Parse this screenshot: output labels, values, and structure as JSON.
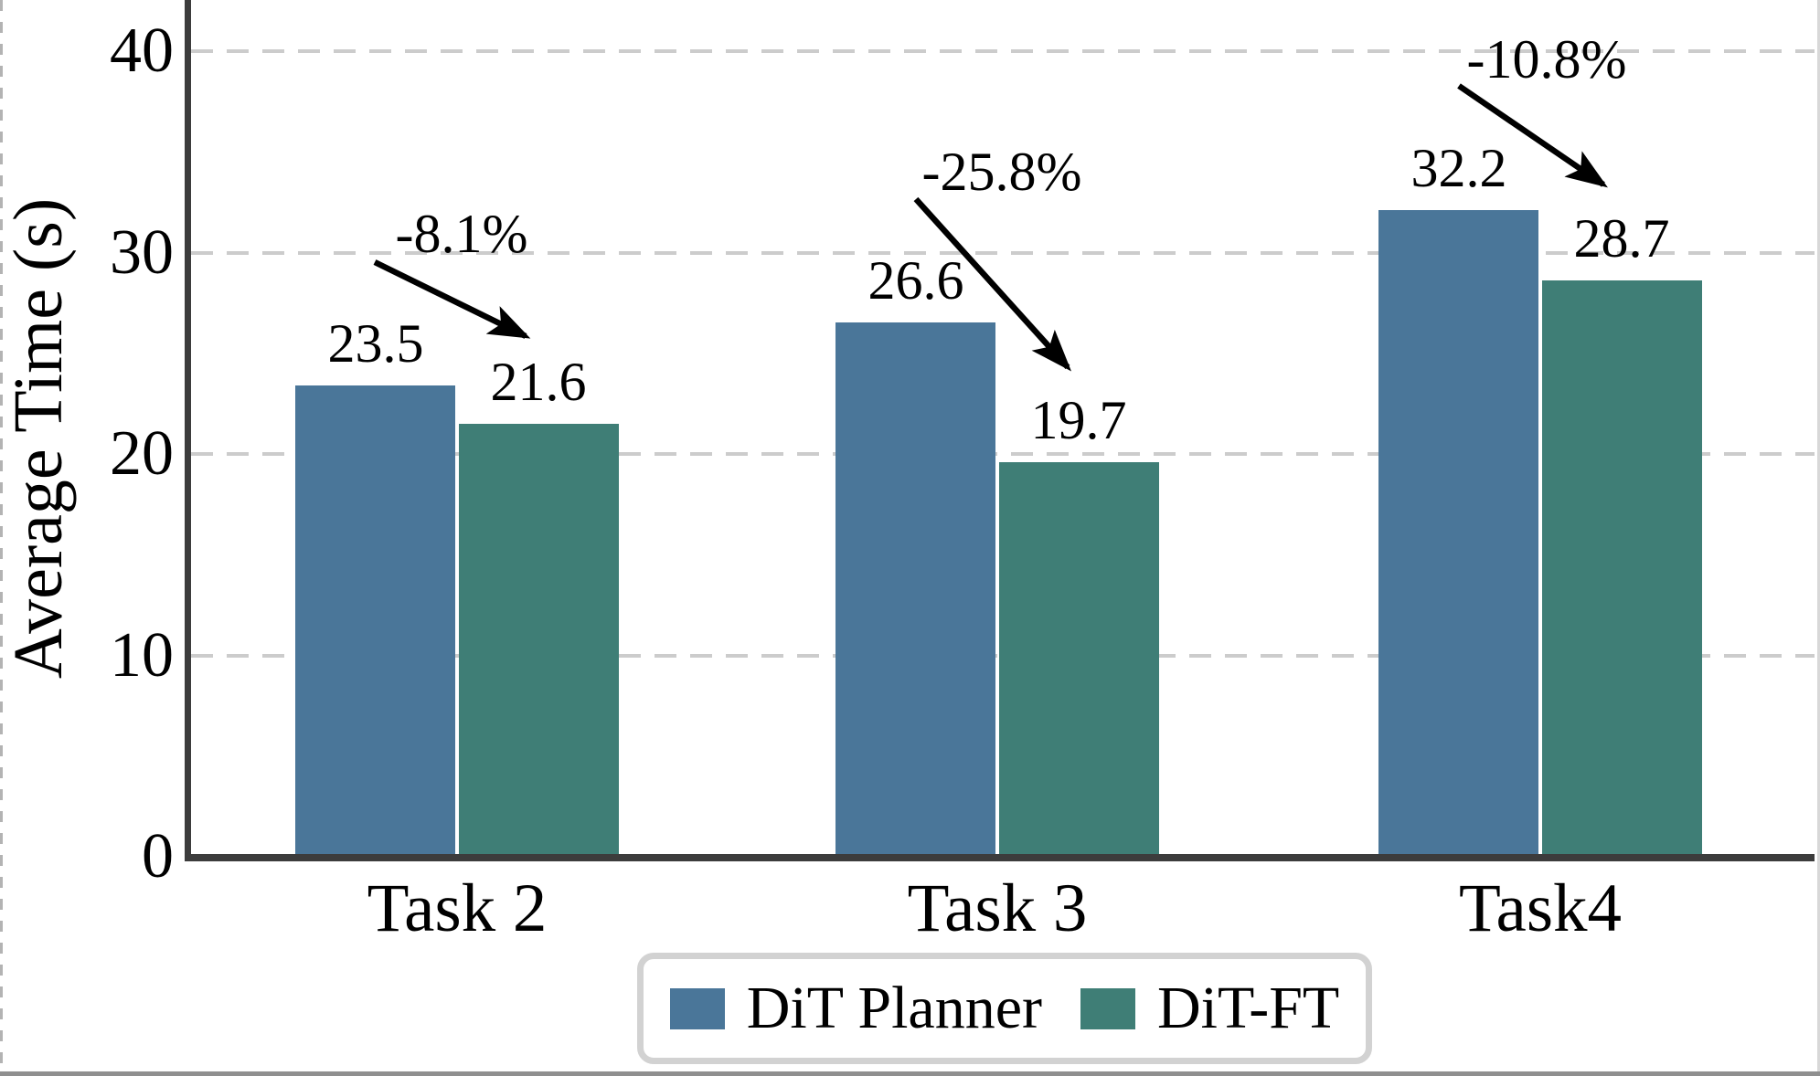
{
  "axis": {
    "ylabel": "Average Time (s)",
    "yticks": [
      "40",
      "30",
      "20",
      "10",
      "0"
    ],
    "xticks": [
      "Task 2",
      "Task 3",
      "Task4"
    ]
  },
  "legend": {
    "items": [
      {
        "label": "DiT Planner",
        "color": "#4A7699"
      },
      {
        "label": "DiT-FT",
        "color": "#3F7E76"
      }
    ]
  },
  "annotations": [
    {
      "text": "-8.1%"
    },
    {
      "text": "-25.8%"
    },
    {
      "text": "-10.8%"
    }
  ],
  "chart_data": {
    "type": "bar",
    "categories": [
      "Task 2",
      "Task 3",
      "Task4"
    ],
    "series": [
      {
        "name": "DiT Planner",
        "color": "#4A7699",
        "values": [
          23.5,
          26.6,
          32.2
        ]
      },
      {
        "name": "DiT-FT",
        "color": "#3F7E76",
        "values": [
          21.6,
          19.7,
          28.7
        ]
      }
    ],
    "value_labels": [
      "23.5",
      "21.6",
      "26.6",
      "19.7",
      "32.2",
      "28.7"
    ],
    "percent_change_labels": [
      "-8.1%",
      "-25.8%",
      "-10.8%"
    ],
    "title": "",
    "xlabel": "",
    "ylabel": "Average Time (s)",
    "ylim": [
      0,
      42.7
    ],
    "yticks": [
      0,
      10,
      20,
      30,
      40
    ],
    "grid": "horizontal-dashed",
    "legend_position": "bottom-center"
  }
}
